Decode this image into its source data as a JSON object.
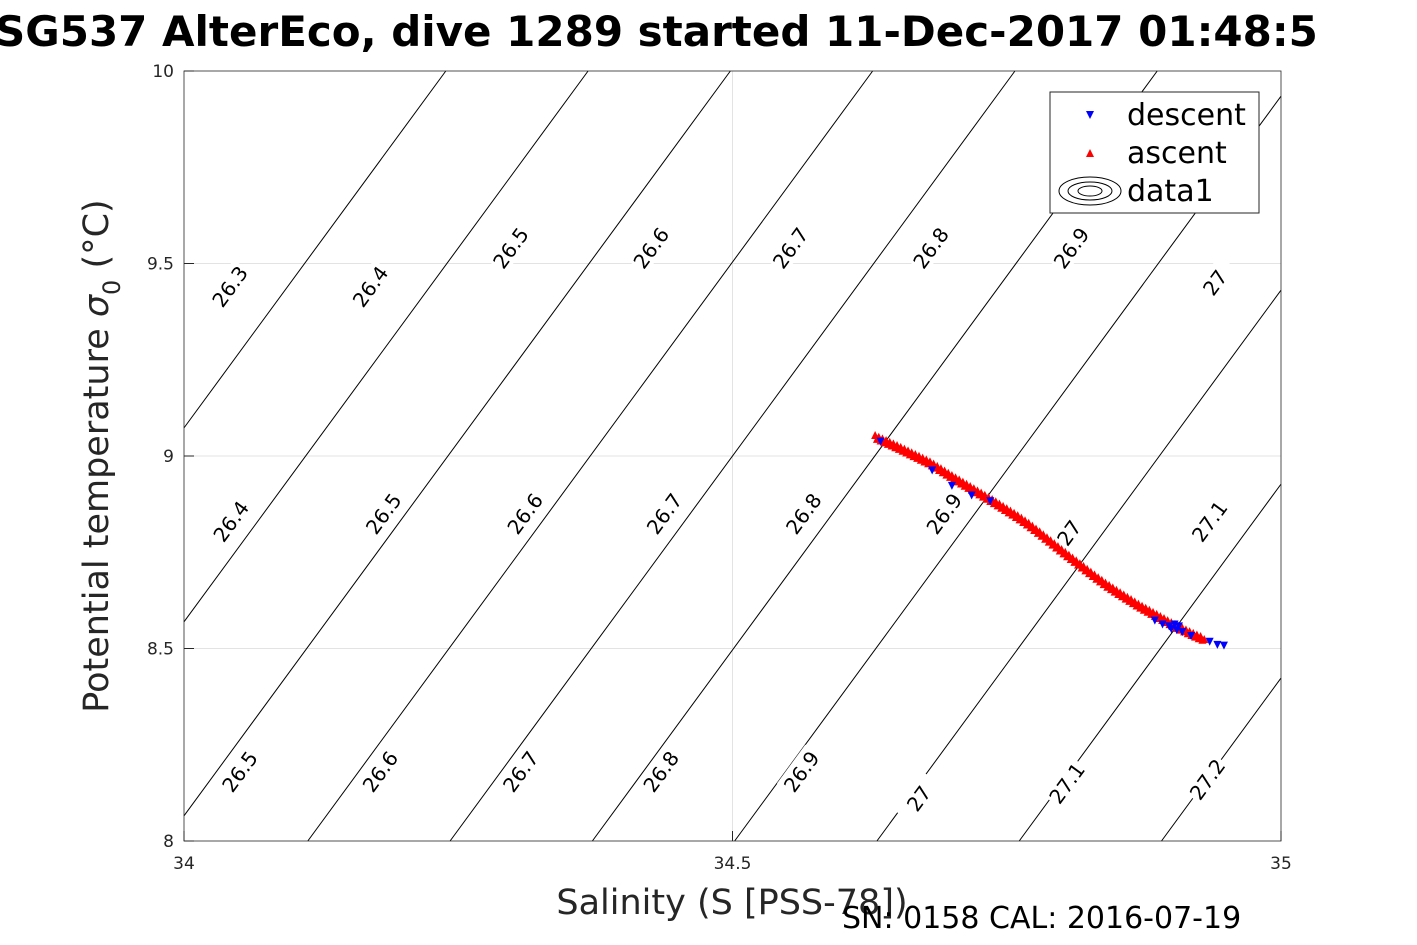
{
  "chart_data": {
    "type": "scatter",
    "title": "SG537 AlterEco, dive 1289 started 11-Dec-2017 01:48:5",
    "xlabel": "Salinity (S [PSS-78])",
    "ylabel": "Potential temperature σ0 (°C)",
    "ylabel_main": "Potential temperature ",
    "ylabel_sigma": "σ",
    "ylabel_sub": "0",
    "ylabel_unit": " (°C)",
    "xlim": [
      34,
      35
    ],
    "ylim": [
      8,
      10
    ],
    "xticks": [
      "34",
      "34.5",
      "35"
    ],
    "xtick_values": [
      34,
      34.5,
      35
    ],
    "yticks": [
      "8",
      "8.5",
      "9",
      "9.5",
      "10"
    ],
    "ytick_values": [
      8,
      8.5,
      9,
      9.5,
      10
    ],
    "grid": true,
    "legend_position": "top-right",
    "legend": [
      {
        "label": "descent",
        "marker": "triangle-down",
        "color": "#0000ff"
      },
      {
        "label": "ascent",
        "marker": "triangle-up",
        "color": "#ff0000"
      },
      {
        "label": "data1",
        "marker": "contour-ellipses",
        "color": "#000000"
      }
    ],
    "contours": {
      "levels": [
        26.3,
        26.4,
        26.5,
        26.6,
        26.7,
        26.8,
        26.9,
        27.0,
        27.1,
        27.2
      ],
      "line_color": "#000000",
      "labels": [
        {
          "text": "26.3",
          "s": 34.042,
          "t": 9.44
        },
        {
          "text": "26.4",
          "s": 34.17,
          "t": 9.44
        },
        {
          "text": "26.5",
          "s": 34.298,
          "t": 9.54
        },
        {
          "text": "26.6",
          "s": 34.426,
          "t": 9.54
        },
        {
          "text": "26.7",
          "s": 34.553,
          "t": 9.54
        },
        {
          "text": "26.8",
          "s": 34.681,
          "t": 9.54
        },
        {
          "text": "26.9",
          "s": 34.809,
          "t": 9.54
        },
        {
          "text": "27",
          "s": 34.94,
          "t": 9.45
        },
        {
          "text": "26.4",
          "s": 34.043,
          "t": 8.83
        },
        {
          "text": "26.5",
          "s": 34.182,
          "t": 8.85
        },
        {
          "text": "26.6",
          "s": 34.311,
          "t": 8.85
        },
        {
          "text": "26.7",
          "s": 34.438,
          "t": 8.85
        },
        {
          "text": "26.8",
          "s": 34.565,
          "t": 8.85
        },
        {
          "text": "26.9",
          "s": 34.693,
          "t": 8.85
        },
        {
          "text": "27",
          "s": 34.807,
          "t": 8.8
        },
        {
          "text": "27.1",
          "s": 34.935,
          "t": 8.83
        },
        {
          "text": "26.5",
          "s": 34.051,
          "t": 8.18
        },
        {
          "text": "26.6",
          "s": 34.179,
          "t": 8.18
        },
        {
          "text": "26.7",
          "s": 34.307,
          "t": 8.18
        },
        {
          "text": "26.8",
          "s": 34.435,
          "t": 8.18
        },
        {
          "text": "26.9",
          "s": 34.563,
          "t": 8.18
        },
        {
          "text": "27",
          "s": 34.67,
          "t": 8.11
        },
        {
          "text": "27.1",
          "s": 34.805,
          "t": 8.15
        },
        {
          "text": "27.2",
          "s": 34.933,
          "t": 8.16
        }
      ]
    },
    "series": [
      {
        "name": "descent",
        "color": "#0000ff",
        "marker": "triangle-down",
        "points": [
          [
            34.635,
            9.04
          ],
          [
            34.682,
            8.965
          ],
          [
            34.7,
            8.925
          ],
          [
            34.718,
            8.9
          ],
          [
            34.735,
            8.885
          ],
          [
            34.885,
            8.575
          ],
          [
            34.892,
            8.565
          ],
          [
            34.898,
            8.56
          ],
          [
            34.9,
            8.553
          ],
          [
            34.903,
            8.565
          ],
          [
            34.905,
            8.55
          ],
          [
            34.907,
            8.56
          ],
          [
            34.91,
            8.545
          ],
          [
            34.918,
            8.535
          ],
          [
            34.935,
            8.52
          ],
          [
            34.942,
            8.512
          ],
          [
            34.948,
            8.51
          ]
        ]
      },
      {
        "name": "ascent",
        "color": "#ff0000",
        "marker": "triangle-up",
        "points": [
          [
            34.63,
            9.048
          ],
          [
            34.64,
            9.035
          ],
          [
            34.65,
            9.022
          ],
          [
            34.66,
            9.008
          ],
          [
            34.67,
            8.994
          ],
          [
            34.68,
            8.98
          ],
          [
            34.69,
            8.962
          ],
          [
            34.7,
            8.944
          ],
          [
            34.71,
            8.927
          ],
          [
            34.72,
            8.91
          ],
          [
            34.73,
            8.893
          ],
          [
            34.74,
            8.876
          ],
          [
            34.75,
            8.858
          ],
          [
            34.76,
            8.84
          ],
          [
            34.77,
            8.82
          ],
          [
            34.78,
            8.798
          ],
          [
            34.79,
            8.775
          ],
          [
            34.8,
            8.752
          ],
          [
            34.81,
            8.73
          ],
          [
            34.82,
            8.708
          ],
          [
            34.83,
            8.686
          ],
          [
            34.84,
            8.665
          ],
          [
            34.85,
            8.646
          ],
          [
            34.86,
            8.628
          ],
          [
            34.87,
            8.61
          ],
          [
            34.88,
            8.594
          ],
          [
            34.89,
            8.578
          ],
          [
            34.9,
            8.562
          ],
          [
            34.91,
            8.548
          ],
          [
            34.92,
            8.534
          ],
          [
            34.93,
            8.522
          ]
        ]
      }
    ]
  },
  "footer": {
    "serial": "SN: 0158  CAL: 2016-07-19"
  }
}
